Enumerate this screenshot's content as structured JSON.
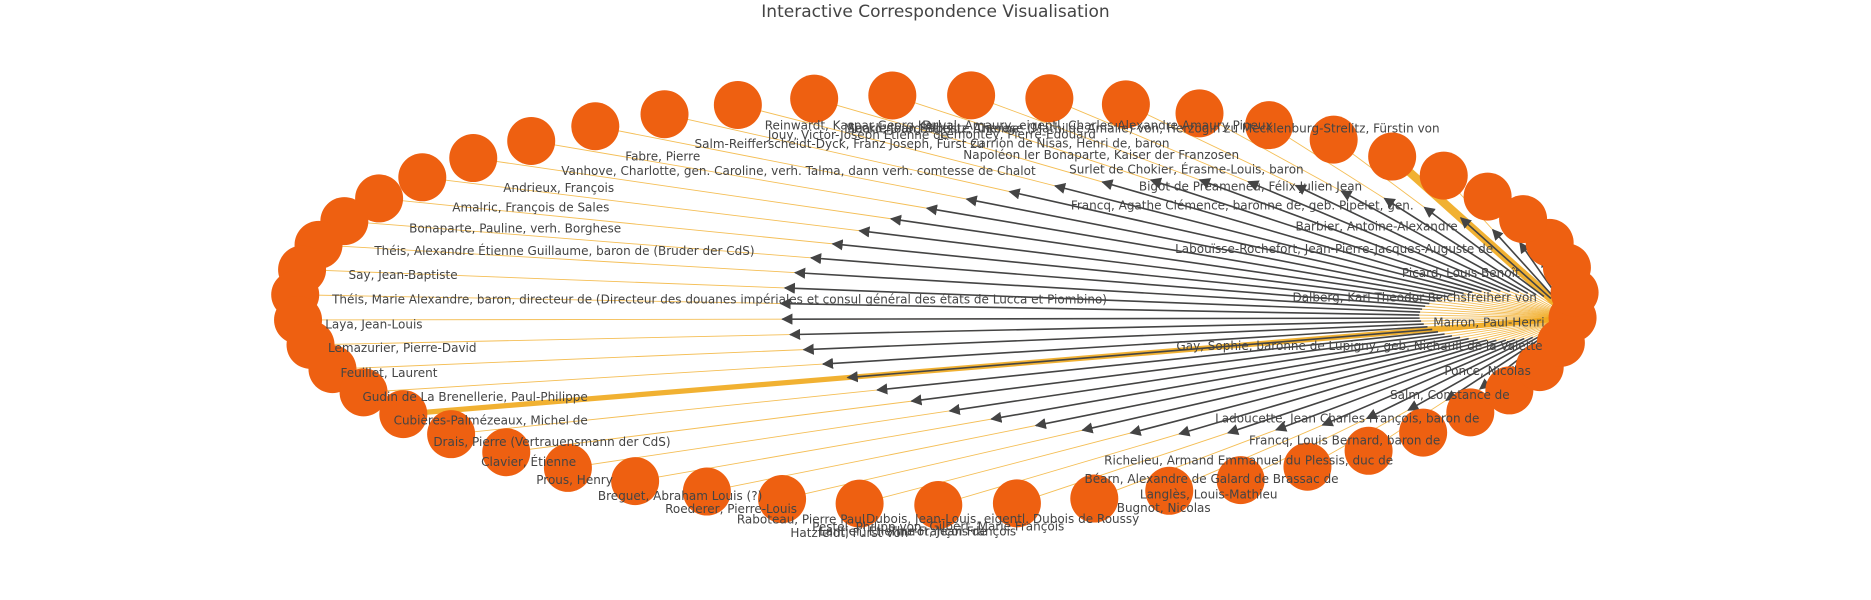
{
  "title": "Interactive Correspondence Visualisation",
  "colors": {
    "node": "#ee6011",
    "edge": "#f0a81c",
    "arrow": "#444444",
    "text": "#444444"
  },
  "hub": "Gay, Sophie, baronne de Lupigny, geb. Nichault de la Valette",
  "nodes": [
    "Gay, Sophie, baronne de Lupigny, geb. Nichault de la Valette",
    "Marron, Paul-Henri",
    "Dalberg, Karl Theodor Reichsfreiherr von",
    "Picard, Louis-Benoît",
    "Labouïsse-Rochefort, Jean-Pierre-Jacques-Auguste de",
    "Barbier, Antoine-Alexandre",
    "Francq, Agathe Clémence, baronne de, geb. Pipelet, gen.",
    "Bigot de Préameneu, Félix Julien Jean",
    "Surlet de Chokier, Érasme-Louis, baron",
    "Napoléon Ier Bonaparte, Kaiser der Franzosen",
    "Carrion de Nisas, Henri de, baron",
    "Lémontey, Pierre-Édouard",
    "Suard, Jean Baptiste Antoine",
    "Reinwardt, Kaspar Georg Karl",
    "Duval, Amaury, eigentl. Charles-Alexandre-Amaury Pineux",
    "Mecklenburg-Strelitz, Therese (Mathilde Amalie) von, Herzogin zu Mecklenburg-Strelitz, Fürstin von",
    "Jouy, Victor-Joseph Étienne de",
    "Salm-Reifferscheidt-Dyck, Franz Joseph, Fürst zu",
    "Fabre, Pierre",
    "Vanhove, Charlotte, gen. Caroline, verh. Talma, dann verh. comtesse de Chalot",
    "Andrieux, François",
    "Amalric, François de Sales",
    "Bonaparte, Pauline, verh. Borghese",
    "Théis, Alexandre Étienne Guillaume, baron de (Bruder der CdS)",
    "Say, Jean-Baptiste",
    "Théis, Marie Alexandre, baron, directeur de (Directeur des douanes impériales et consul général des états de Lucca et Piombino)",
    "Laya, Jean-Louis",
    "Lemazurier, Pierre-David",
    "Feuillet, Laurent",
    "Gudin de La Brenellerie, Paul-Philippe",
    "Cubières-Palmézeaux, Michel de",
    "Drais, Pierre (Vertrauensmann der CdS)",
    "Clavier, Étienne",
    "Prous, Henry",
    "Breguet, Abraham Louis (?)",
    "Roederer, Pierre-Louis",
    "Raboteau, Pierre Paul",
    "Pestel, Philipp von",
    "Thurot, Jean-François",
    "Hatzfeldt, Fürst von",
    "Lantier, Étienne-François de",
    "Gilbert, Marie François",
    "Dubois, Jean-Louis, eigentl. Dubois de Roussy",
    "Bugnot, Nicolas",
    "Langlès, Louis-Mathieu",
    "Béarn, Alexandre de Galard de Brassac de",
    "Richelieu, Armand Emmanuel du Plessis, duc de",
    "Francq, Louis Bernard, baron de",
    "Ladoucette, Jean Charles François, baron de",
    "Salm, Constance de",
    "Ponce, Nicolas"
  ],
  "edge_weights": [
    0,
    1,
    1,
    1,
    1,
    1,
    1,
    4,
    1,
    1,
    1,
    1,
    1,
    1,
    1,
    1,
    1,
    1,
    1,
    1,
    1,
    1,
    1,
    1,
    1,
    1,
    1,
    1,
    1,
    1,
    1,
    2,
    1,
    1,
    1,
    1,
    1,
    1,
    1,
    1,
    1,
    1,
    1,
    1,
    1,
    1,
    1,
    1,
    1,
    1,
    1
  ]
}
